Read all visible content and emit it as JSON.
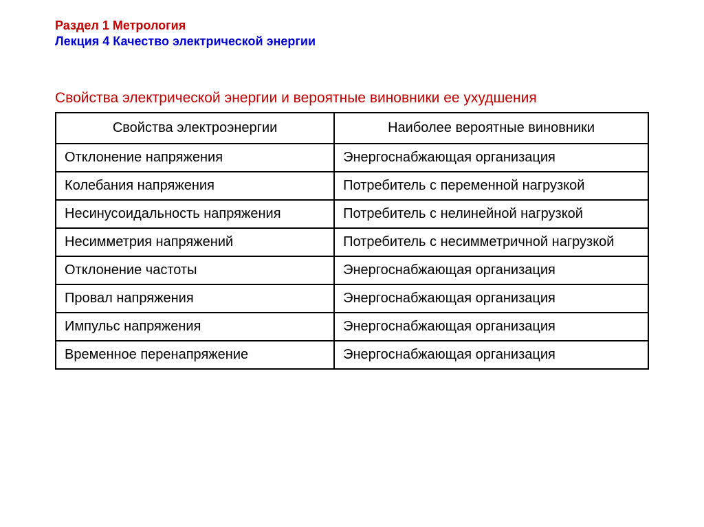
{
  "header": {
    "section": "Раздел 1  Метрология",
    "lecture": "Лекция 4  Качество электрической энергии"
  },
  "table": {
    "title": "Свойства электрической энергии и вероятные виновники ее ухудшения",
    "columns": [
      "Свойства электроэнергии",
      "Наиболее вероятные виновники"
    ],
    "rows": [
      [
        "Отклонение напряжения",
        "Энергоснабжающая организация"
      ],
      [
        "Колебания напряжения",
        "Потребитель с переменной нагрузкой"
      ],
      [
        "Несинусоидальность напряжения",
        "Потребитель с нелинейной нагрузкой"
      ],
      [
        "Несимметрия напряжений",
        "Потребитель с несимметричной нагрузкой"
      ],
      [
        "Отклонение частоты",
        "Энергоснабжающая организация"
      ],
      [
        "Провал напряжения",
        "Энергоснабжающая организация"
      ],
      [
        "Импульс напряжения",
        "Энергоснабжающая организация"
      ],
      [
        "Временное перенапряжение",
        "Энергоснабжающая организация"
      ]
    ]
  },
  "style": {
    "section_color": "#c00000",
    "lecture_color": "#0000d0",
    "title_color": "#c00000",
    "border_color": "#000000",
    "text_color": "#000000",
    "background_color": "#ffffff",
    "header_fontsize": 18,
    "title_fontsize": 21,
    "cell_fontsize": 20,
    "border_width": 2,
    "col_widths_pct": [
      47,
      53
    ]
  }
}
